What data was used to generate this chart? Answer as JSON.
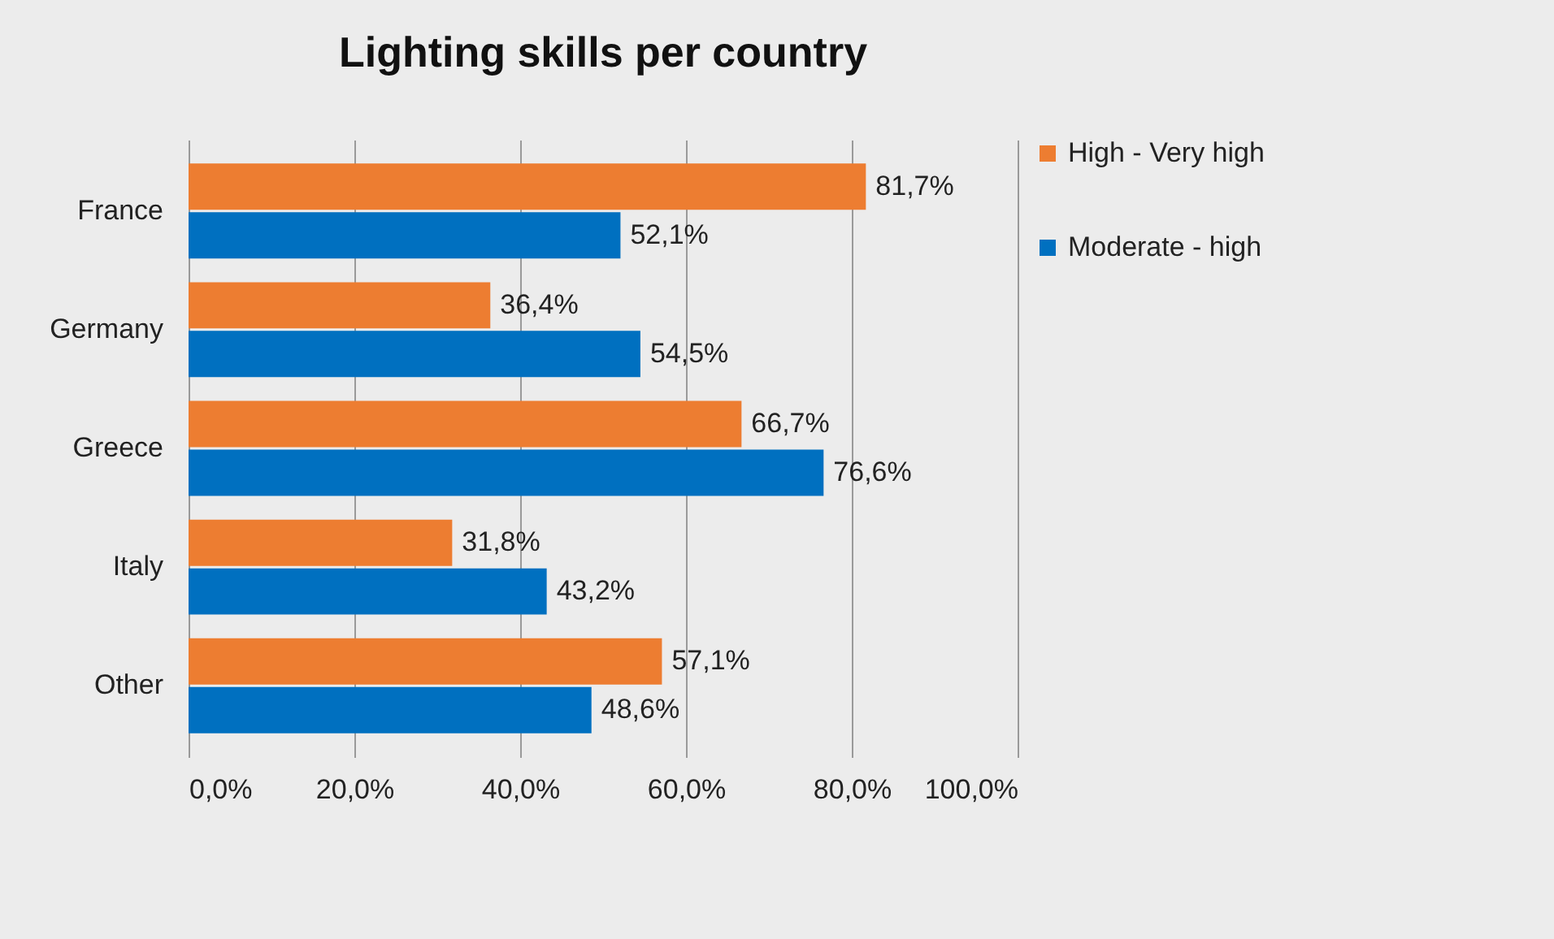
{
  "chart_data": {
    "type": "bar",
    "orientation": "horizontal",
    "title": "Lighting skills per country",
    "categories": [
      "France",
      "Germany",
      "Greece",
      "Italy",
      "Other"
    ],
    "series": [
      {
        "name": "High - Very high",
        "color": "#ed7d31",
        "values": [
          81.7,
          36.4,
          66.7,
          31.8,
          57.1
        ],
        "value_labels": [
          "81,7%",
          "36,4%",
          "66,7%",
          "31,8%",
          "57,1%"
        ]
      },
      {
        "name": "Moderate - high",
        "color": "#0070c0",
        "values": [
          52.1,
          54.5,
          76.6,
          43.2,
          48.6
        ],
        "value_labels": [
          "52,1%",
          "54,5%",
          "76,6%",
          "43,2%",
          "48,6%"
        ]
      }
    ],
    "xlim": [
      0,
      100
    ],
    "xticks": [
      {
        "value": 0,
        "label": "0,0%"
      },
      {
        "value": 20,
        "label": "20,0%"
      },
      {
        "value": 40,
        "label": "40,0%"
      },
      {
        "value": 60,
        "label": "60,0%"
      },
      {
        "value": 80,
        "label": "80,0%"
      },
      {
        "value": 100,
        "label": "100,0%"
      }
    ],
    "grid": "x",
    "legend": "right"
  }
}
